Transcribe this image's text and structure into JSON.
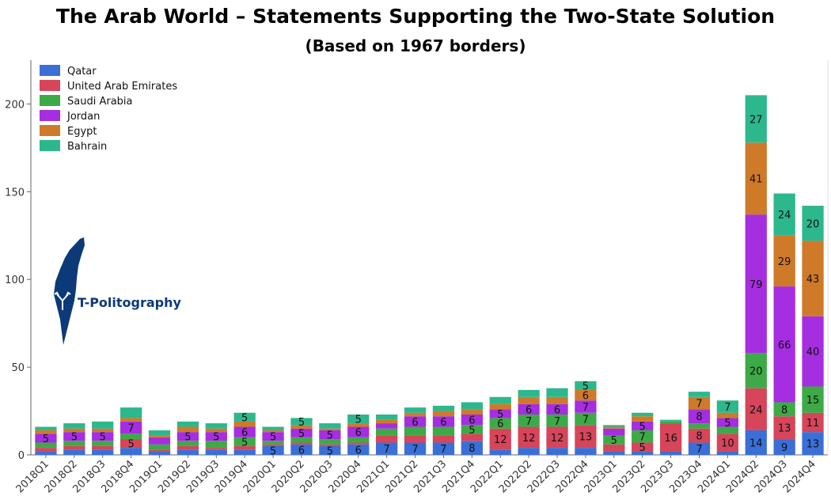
{
  "header": {
    "title": "The Arab World – Statements Supporting the Two-State Solution",
    "subtitle": "(Based on 1967 borders)"
  },
  "logo": {
    "text": "T-Politography"
  },
  "chart_data": {
    "type": "bar",
    "stacked": true,
    "title": "The Arab World – Statements Supporting the Two-State Solution",
    "subtitle": "(Based on 1967 borders)",
    "xlabel": "",
    "ylabel": "",
    "ylim": [
      0,
      225
    ],
    "yticks": [
      0,
      50,
      100,
      150,
      200
    ],
    "legend_position": "top-left",
    "grid": false,
    "categories": [
      "2018Q1",
      "2018Q2",
      "2018Q3",
      "2018Q4",
      "2019Q1",
      "2019Q2",
      "2019Q3",
      "2019Q4",
      "2020Q1",
      "2020Q2",
      "2020Q3",
      "2020Q4",
      "2021Q1",
      "2021Q2",
      "2021Q3",
      "2021Q4",
      "2022Q1",
      "2022Q2",
      "2022Q3",
      "2022Q4",
      "2023Q1",
      "2023Q2",
      "2023Q3",
      "2023Q4",
      "2024Q1",
      "2024Q2",
      "2024Q3",
      "2024Q4"
    ],
    "series": [
      {
        "name": "Qatar",
        "color": "#3b6fd8",
        "values": [
          2,
          3,
          3,
          4,
          2,
          3,
          3,
          3,
          5,
          6,
          5,
          6,
          7,
          7,
          7,
          8,
          3,
          4,
          4,
          4,
          2,
          2,
          2,
          7,
          2,
          14,
          9,
          13
        ]
      },
      {
        "name": "United Arab Emirates",
        "color": "#d6455a",
        "values": [
          2,
          2,
          2,
          5,
          1,
          2,
          1,
          2,
          1,
          1,
          1,
          1,
          4,
          4,
          4,
          4,
          12,
          12,
          12,
          13,
          4,
          5,
          16,
          8,
          10,
          24,
          13,
          11
        ]
      },
      {
        "name": "Saudi Arabia",
        "color": "#3daa47",
        "values": [
          3,
          3,
          3,
          3,
          3,
          3,
          4,
          5,
          2,
          3,
          3,
          3,
          4,
          5,
          5,
          5,
          6,
          7,
          7,
          7,
          5,
          7,
          1,
          3,
          4,
          20,
          8,
          15
        ]
      },
      {
        "name": "Jordan",
        "color": "#a52ee0",
        "values": [
          5,
          5,
          5,
          7,
          4,
          5,
          5,
          6,
          5,
          5,
          5,
          6,
          3,
          6,
          6,
          6,
          5,
          6,
          6,
          7,
          4,
          5,
          0,
          8,
          5,
          79,
          66,
          40
        ]
      },
      {
        "name": "Egypt",
        "color": "#cf7a28",
        "values": [
          2,
          2,
          2,
          2,
          1,
          3,
          2,
          3,
          1,
          2,
          1,
          2,
          2,
          2,
          3,
          3,
          3,
          4,
          4,
          6,
          1,
          3,
          0,
          7,
          3,
          41,
          29,
          43
        ]
      },
      {
        "name": "Bahrain",
        "color": "#2cb88c",
        "values": [
          2,
          3,
          4,
          6,
          3,
          3,
          3,
          5,
          2,
          4,
          3,
          5,
          3,
          3,
          3,
          4,
          4,
          4,
          5,
          5,
          1,
          2,
          1,
          3,
          7,
          27,
          24,
          20
        ]
      }
    ],
    "data_labels": [
      {
        "category": "2018Q1",
        "series": "Jordan",
        "text": "5"
      },
      {
        "category": "2018Q2",
        "series": "Jordan",
        "text": "5"
      },
      {
        "category": "2018Q3",
        "series": "Jordan",
        "text": "5"
      },
      {
        "category": "2018Q4",
        "series": "United Arab Emirates",
        "text": "5"
      },
      {
        "category": "2018Q4",
        "series": "Jordan",
        "text": "7"
      },
      {
        "category": "2019Q2",
        "series": "Jordan",
        "text": "5"
      },
      {
        "category": "2019Q3",
        "series": "Jordan",
        "text": "5"
      },
      {
        "category": "2019Q4",
        "series": "Saudi Arabia",
        "text": "5"
      },
      {
        "category": "2019Q4",
        "series": "Jordan",
        "text": "6"
      },
      {
        "category": "2019Q4",
        "series": "Bahrain",
        "text": "5"
      },
      {
        "category": "2020Q1",
        "series": "Qatar",
        "text": "5"
      },
      {
        "category": "2020Q1",
        "series": "Jordan",
        "text": "5"
      },
      {
        "category": "2020Q2",
        "series": "Qatar",
        "text": "6"
      },
      {
        "category": "2020Q2",
        "series": "Jordan",
        "text": "5"
      },
      {
        "category": "2020Q2",
        "series": "Bahrain",
        "text": "5"
      },
      {
        "category": "2020Q3",
        "series": "Qatar",
        "text": "5"
      },
      {
        "category": "2020Q3",
        "series": "Jordan",
        "text": "5"
      },
      {
        "category": "2020Q4",
        "series": "Qatar",
        "text": "6"
      },
      {
        "category": "2020Q4",
        "series": "Jordan",
        "text": "6"
      },
      {
        "category": "2020Q4",
        "series": "Bahrain",
        "text": "5"
      },
      {
        "category": "2021Q1",
        "series": "Qatar",
        "text": "7"
      },
      {
        "category": "2021Q2",
        "series": "Qatar",
        "text": "7"
      },
      {
        "category": "2021Q2",
        "series": "Jordan",
        "text": "6"
      },
      {
        "category": "2021Q3",
        "series": "Qatar",
        "text": "7"
      },
      {
        "category": "2021Q3",
        "series": "Jordan",
        "text": "6"
      },
      {
        "category": "2021Q4",
        "series": "Qatar",
        "text": "8"
      },
      {
        "category": "2021Q4",
        "series": "Saudi Arabia",
        "text": "5"
      },
      {
        "category": "2021Q4",
        "series": "Jordan",
        "text": "6"
      },
      {
        "category": "2022Q1",
        "series": "United Arab Emirates",
        "text": "12"
      },
      {
        "category": "2022Q1",
        "series": "Saudi Arabia",
        "text": "6"
      },
      {
        "category": "2022Q1",
        "series": "Jordan",
        "text": "5"
      },
      {
        "category": "2022Q2",
        "series": "United Arab Emirates",
        "text": "12"
      },
      {
        "category": "2022Q2",
        "series": "Saudi Arabia",
        "text": "7"
      },
      {
        "category": "2022Q2",
        "series": "Jordan",
        "text": "6"
      },
      {
        "category": "2022Q3",
        "series": "United Arab Emirates",
        "text": "12"
      },
      {
        "category": "2022Q3",
        "series": "Saudi Arabia",
        "text": "7"
      },
      {
        "category": "2022Q3",
        "series": "Jordan",
        "text": "6"
      },
      {
        "category": "2022Q4",
        "series": "United Arab Emirates",
        "text": "13"
      },
      {
        "category": "2022Q4",
        "series": "Saudi Arabia",
        "text": "7"
      },
      {
        "category": "2022Q4",
        "series": "Jordan",
        "text": "7"
      },
      {
        "category": "2022Q4",
        "series": "Egypt",
        "text": "6"
      },
      {
        "category": "2022Q4",
        "series": "Bahrain",
        "text": "5"
      },
      {
        "category": "2023Q1",
        "series": "Saudi Arabia",
        "text": "5"
      },
      {
        "category": "2023Q2",
        "series": "United Arab Emirates",
        "text": "5"
      },
      {
        "category": "2023Q2",
        "series": "Saudi Arabia",
        "text": "7"
      },
      {
        "category": "2023Q2",
        "series": "Jordan",
        "text": "5"
      },
      {
        "category": "2023Q3",
        "series": "United Arab Emirates",
        "text": "16"
      },
      {
        "category": "2023Q4",
        "series": "Qatar",
        "text": "7"
      },
      {
        "category": "2023Q4",
        "series": "United Arab Emirates",
        "text": "8"
      },
      {
        "category": "2023Q4",
        "series": "Jordan",
        "text": "8"
      },
      {
        "category": "2023Q4",
        "series": "Egypt",
        "text": "7"
      },
      {
        "category": "2024Q1",
        "series": "United Arab Emirates",
        "text": "10"
      },
      {
        "category": "2024Q1",
        "series": "Jordan",
        "text": "5"
      },
      {
        "category": "2024Q1",
        "series": "Bahrain",
        "text": "7"
      },
      {
        "category": "2024Q2",
        "series": "Qatar",
        "text": "14"
      },
      {
        "category": "2024Q2",
        "series": "United Arab Emirates",
        "text": "24"
      },
      {
        "category": "2024Q2",
        "series": "Saudi Arabia",
        "text": "20"
      },
      {
        "category": "2024Q2",
        "series": "Jordan",
        "text": "79"
      },
      {
        "category": "2024Q2",
        "series": "Egypt",
        "text": "41"
      },
      {
        "category": "2024Q2",
        "series": "Bahrain",
        "text": "27"
      },
      {
        "category": "2024Q3",
        "series": "Qatar",
        "text": "9"
      },
      {
        "category": "2024Q3",
        "series": "United Arab Emirates",
        "text": "13"
      },
      {
        "category": "2024Q3",
        "series": "Saudi Arabia",
        "text": "8"
      },
      {
        "category": "2024Q3",
        "series": "Jordan",
        "text": "66"
      },
      {
        "category": "2024Q3",
        "series": "Egypt",
        "text": "29"
      },
      {
        "category": "2024Q3",
        "series": "Bahrain",
        "text": "24"
      },
      {
        "category": "2024Q4",
        "series": "Qatar",
        "text": "13"
      },
      {
        "category": "2024Q4",
        "series": "United Arab Emirates",
        "text": "11"
      },
      {
        "category": "2024Q4",
        "series": "Saudi Arabia",
        "text": "15"
      },
      {
        "category": "2024Q4",
        "series": "Jordan",
        "text": "40"
      },
      {
        "category": "2024Q4",
        "series": "Egypt",
        "text": "43"
      },
      {
        "category": "2024Q4",
        "series": "Bahrain",
        "text": "20"
      }
    ]
  }
}
